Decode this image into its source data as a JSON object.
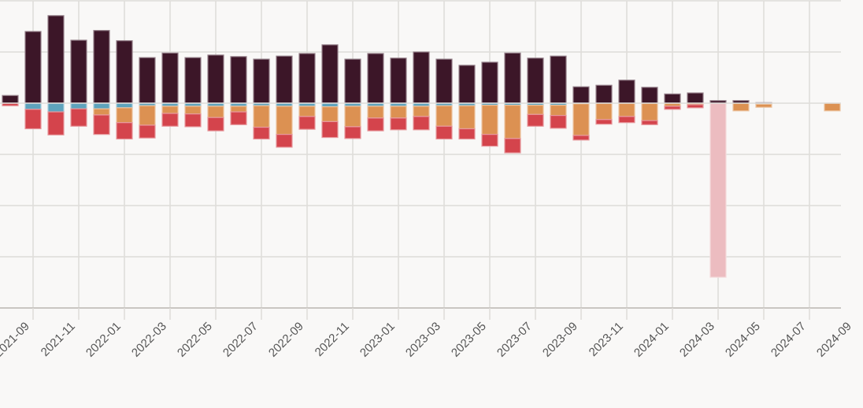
{
  "chart_data": {
    "type": "bar",
    "stacked": true,
    "title": "",
    "xlabel": "",
    "ylabel": "",
    "y_axis_labels_visible": false,
    "grid": true,
    "ylim": [
      -400,
      200
    ],
    "y_grid_step": 100,
    "categories": [
      "2021-08",
      "2021-09",
      "2021-10",
      "2021-11",
      "2021-12",
      "2022-01",
      "2022-02",
      "2022-03",
      "2022-04",
      "2022-05",
      "2022-06",
      "2022-07",
      "2022-08",
      "2022-09",
      "2022-10",
      "2022-11",
      "2022-12",
      "2023-01",
      "2023-02",
      "2023-03",
      "2023-04",
      "2023-05",
      "2023-06",
      "2023-07",
      "2023-08",
      "2023-09",
      "2023-10",
      "2023-11",
      "2023-12",
      "2024-01",
      "2024-02",
      "2024-03",
      "2024-04",
      "2024-05",
      "2024-06",
      "2024-07",
      "2024-08"
    ],
    "x_tick_labels": [
      "2021-09",
      "2021-11",
      "2022-01",
      "2022-03",
      "2022-05",
      "2022-07",
      "2022-09",
      "2022-11",
      "2023-01",
      "2023-03",
      "2023-05",
      "2023-07",
      "2023-09",
      "2023-11",
      "2024-01",
      "2024-03",
      "2024-05",
      "2024-07",
      "2024-09"
    ],
    "series": [
      {
        "name": "positive",
        "color": "#3c1628",
        "values": [
          15,
          140,
          171,
          123,
          142,
          122,
          89,
          98,
          89,
          94,
          91,
          86,
          92,
          97,
          114,
          86,
          97,
          88,
          100,
          86,
          74,
          80,
          98,
          88,
          92,
          32,
          35,
          45,
          31,
          18,
          20,
          5,
          5,
          1,
          0,
          0,
          0
        ]
      },
      {
        "name": "blue",
        "color": "#5ea3bd",
        "values": [
          0,
          -12,
          -17,
          -11,
          -11,
          -9,
          -5,
          -6,
          -6,
          -6,
          -6,
          -5,
          -6,
          -6,
          -7,
          -6,
          -6,
          -6,
          -6,
          -5,
          -5,
          -4,
          -4,
          -4,
          -4,
          -1,
          0,
          0,
          0,
          0,
          0,
          0,
          0,
          -2,
          0,
          0,
          0
        ]
      },
      {
        "name": "orange",
        "color": "#dc9152",
        "values": [
          0,
          0,
          0,
          0,
          -12,
          -29,
          -38,
          -14,
          -15,
          -22,
          -11,
          -42,
          -55,
          -20,
          -29,
          -40,
          -23,
          -23,
          -20,
          -40,
          -45,
          -57,
          -65,
          -18,
          -20,
          -62,
          -32,
          -26,
          -34,
          -6,
          -3,
          0,
          -15,
          -6,
          0,
          0,
          -15
        ]
      },
      {
        "name": "red",
        "color": "#d4444c",
        "values": [
          -5,
          -38,
          -45,
          -34,
          -38,
          -32,
          -25,
          -25,
          -25,
          -26,
          -25,
          -23,
          -25,
          -25,
          -31,
          -23,
          -25,
          -23,
          -26,
          -25,
          -20,
          -23,
          -28,
          -23,
          -25,
          -9,
          -9,
          -12,
          -8,
          -6,
          -6,
          0,
          0,
          0,
          0,
          0,
          0
        ]
      },
      {
        "name": "pink",
        "color": "#ecbcc0",
        "values": [
          0,
          0,
          0,
          0,
          0,
          0,
          0,
          0,
          0,
          0,
          0,
          0,
          0,
          0,
          0,
          0,
          0,
          0,
          0,
          0,
          0,
          0,
          0,
          0,
          0,
          0,
          0,
          0,
          0,
          0,
          0,
          -340,
          0,
          0,
          0,
          0,
          0
        ]
      }
    ]
  }
}
